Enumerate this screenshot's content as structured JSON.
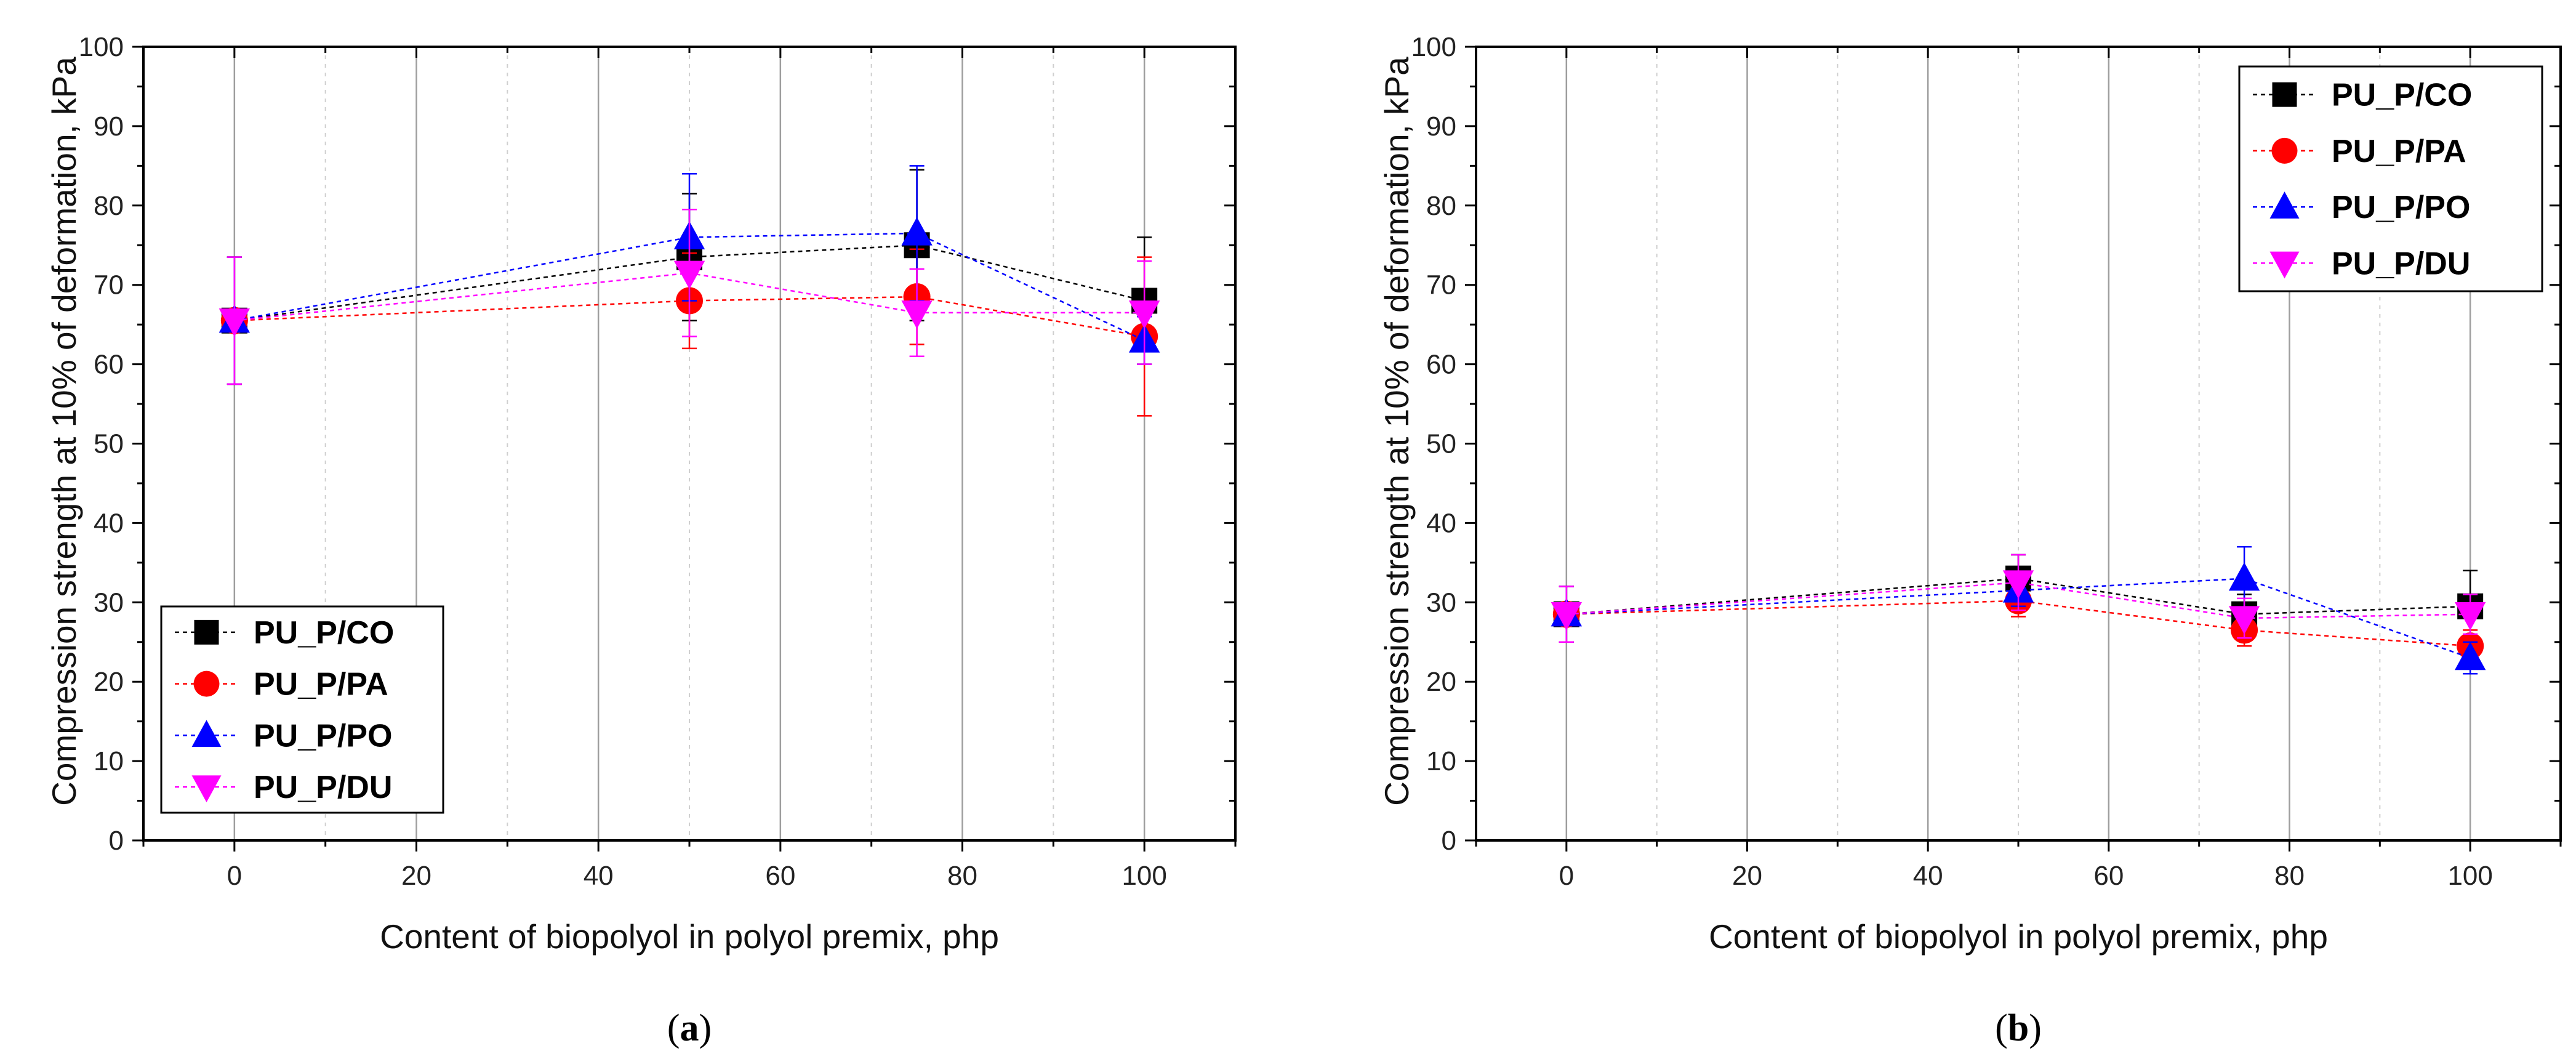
{
  "chart_data": [
    {
      "type": "line",
      "panel_label": "a",
      "xlabel": "Content of biopolyol in polyol premix, php",
      "ylabel": "Compression strength at 10% of deformation, kPa",
      "xlim": [
        -10,
        110
      ],
      "ylim": [
        0,
        100
      ],
      "xticks": [
        0,
        20,
        40,
        60,
        80,
        100
      ],
      "yticks": [
        0,
        10,
        20,
        30,
        40,
        50,
        60,
        70,
        80,
        90,
        100
      ],
      "grid": true,
      "legend_position": "bottom-left",
      "x": [
        0,
        50,
        75,
        100
      ],
      "series": [
        {
          "name": "PU_P/CO",
          "color": "#000000",
          "marker": "square",
          "values": [
            65.5,
            73.5,
            75.0,
            68.0
          ],
          "errors": [
            8,
            8,
            9.5,
            8
          ]
        },
        {
          "name": "PU_P/PA",
          "color": "#ff0000",
          "marker": "circle",
          "values": [
            65.5,
            68.0,
            68.5,
            63.5
          ],
          "errors": [
            8,
            6,
            6,
            10
          ]
        },
        {
          "name": "PU_P/PO",
          "color": "#0000ff",
          "marker": "triangle-up",
          "values": [
            65.5,
            76.0,
            76.5,
            63.0
          ],
          "errors": [
            8,
            8,
            8.5,
            3
          ]
        },
        {
          "name": "PU_P/DU",
          "color": "#ff00ff",
          "marker": "triangle-down",
          "values": [
            65.5,
            71.5,
            66.5,
            66.5
          ],
          "errors": [
            8,
            8,
            5.5,
            6.5
          ]
        }
      ]
    },
    {
      "type": "line",
      "panel_label": "b",
      "xlabel": "Content of biopolyol in polyol premix, php",
      "ylabel": "Compression strength at 10% of deformation, kPa",
      "xlim": [
        -10,
        110
      ],
      "ylim": [
        0,
        100
      ],
      "xticks": [
        0,
        20,
        40,
        60,
        80,
        100
      ],
      "yticks": [
        0,
        10,
        20,
        30,
        40,
        50,
        60,
        70,
        80,
        90,
        100
      ],
      "grid": true,
      "legend_position": "top-right",
      "x": [
        0,
        50,
        75,
        100
      ],
      "series": [
        {
          "name": "PU_P/CO",
          "color": "#000000",
          "marker": "square",
          "values": [
            28.5,
            33.0,
            28.5,
            29.5
          ],
          "errors": [
            3.5,
            3,
            2.5,
            4.5
          ]
        },
        {
          "name": "PU_P/PA",
          "color": "#ff0000",
          "marker": "circle",
          "values": [
            28.5,
            30.2,
            26.5,
            24.5
          ],
          "errors": [
            3.5,
            2,
            2,
            2
          ]
        },
        {
          "name": "PU_P/PO",
          "color": "#0000ff",
          "marker": "triangle-up",
          "values": [
            28.5,
            31.5,
            33.0,
            23.0
          ],
          "errors": [
            3.5,
            2,
            4,
            2
          ]
        },
        {
          "name": "PU_P/DU",
          "color": "#ff00ff",
          "marker": "triangle-down",
          "values": [
            28.5,
            32.5,
            28.0,
            28.5
          ],
          "errors": [
            3.5,
            3.5,
            2.5,
            2.5
          ]
        }
      ]
    }
  ]
}
